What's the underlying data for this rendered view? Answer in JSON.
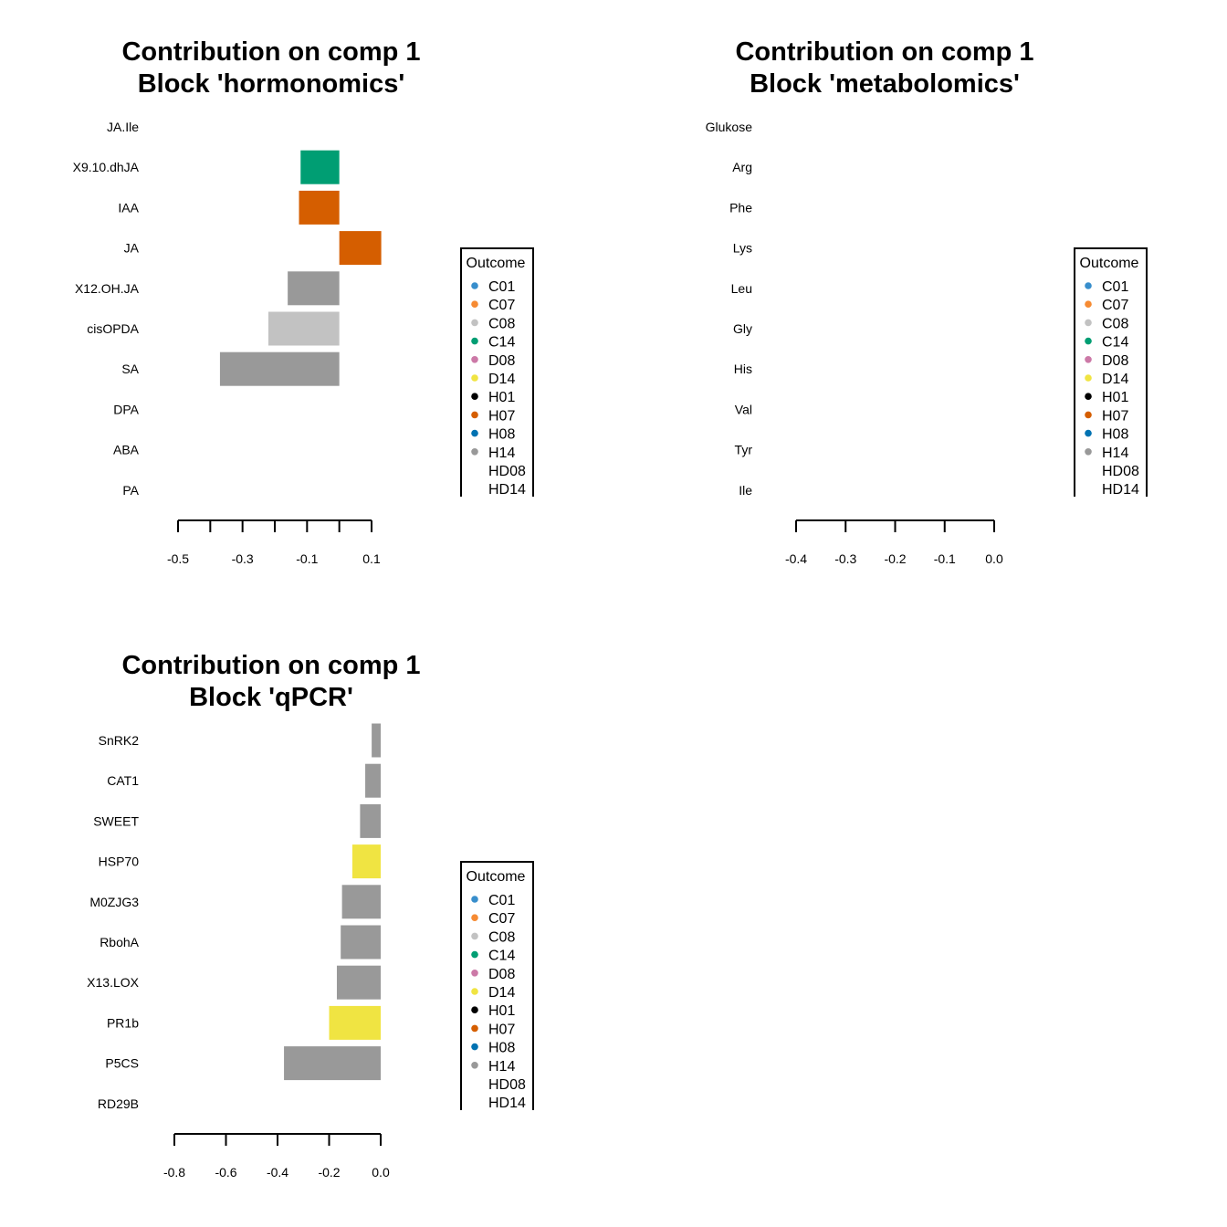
{
  "chart_data": [
    {
      "type": "bar",
      "orientation": "horizontal",
      "title_line1": "Contribution on comp 1",
      "title_line2": "Block 'hormonomics'",
      "variables": [
        "JA.Ile",
        "X9.10.dhJA",
        "IAA",
        "JA",
        "X12.OH.JA",
        "cisOPDA",
        "SA",
        "DPA",
        "ABA",
        "PA"
      ],
      "values": [
        null,
        -0.12,
        -0.125,
        0.13,
        -0.16,
        -0.22,
        -0.37,
        null,
        null,
        null
      ],
      "bar_colors": [
        null,
        "#009E73",
        "#D55E00",
        "#D55E00",
        "#999999",
        "#C2C2C2",
        "#999999",
        null,
        null,
        null
      ],
      "xlim": [
        -0.5,
        0.1
      ],
      "xticks": [
        -0.5,
        -0.4,
        -0.3,
        -0.2,
        -0.1,
        0.0,
        0.1
      ],
      "xtick_labels": [
        "-0.5",
        "",
        "-0.3",
        "",
        "-0.1",
        "",
        "0.1"
      ]
    },
    {
      "type": "bar",
      "orientation": "horizontal",
      "title_line1": "Contribution on comp 1",
      "title_line2": "Block 'metabolomics'",
      "variables": [
        "Glukose",
        "Arg",
        "Phe",
        "Lys",
        "Leu",
        "Gly",
        "His",
        "Val",
        "Tyr",
        "Ile"
      ],
      "values": [
        null,
        null,
        null,
        null,
        null,
        null,
        null,
        null,
        null,
        null
      ],
      "bar_colors": [
        null,
        null,
        null,
        null,
        null,
        null,
        null,
        null,
        null,
        null
      ],
      "xlim": [
        -0.4,
        0.0
      ],
      "xticks": [
        -0.4,
        -0.3,
        -0.2,
        -0.1,
        0.0
      ],
      "xtick_labels": [
        "-0.4",
        "-0.3",
        "-0.2",
        "-0.1",
        "0.0"
      ]
    },
    {
      "type": "bar",
      "orientation": "horizontal",
      "title_line1": "Contribution on comp 1",
      "title_line2": "Block 'qPCR'",
      "variables": [
        "SnRK2",
        "CAT1",
        "SWEET",
        "HSP70",
        "M0ZJG3",
        "RbohA",
        "X13.LOX",
        "PR1b",
        "P5CS",
        "RD29B"
      ],
      "values": [
        -0.035,
        -0.06,
        -0.08,
        -0.11,
        -0.15,
        -0.155,
        -0.17,
        -0.2,
        -0.375,
        null
      ],
      "bar_colors": [
        "#999999",
        "#999999",
        "#999999",
        "#F0E442",
        "#999999",
        "#999999",
        "#999999",
        "#F0E442",
        "#999999",
        null
      ],
      "xlim": [
        -0.8,
        0.0
      ],
      "xticks": [
        -0.8,
        -0.6,
        -0.4,
        -0.2,
        0.0
      ],
      "xtick_labels": [
        "-0.8",
        "-0.6",
        "-0.4",
        "-0.2",
        "0.0"
      ]
    }
  ],
  "legend": {
    "title": "Outcome",
    "items": [
      {
        "label": "C01",
        "color": "#388ECC"
      },
      {
        "label": "C07",
        "color": "#F68B33"
      },
      {
        "label": "C08",
        "color": "#C2C2C2"
      },
      {
        "label": "C14",
        "color": "#009E73"
      },
      {
        "label": "D08",
        "color": "#CC79A7"
      },
      {
        "label": "D14",
        "color": "#F0E442"
      },
      {
        "label": "H01",
        "color": "#000000"
      },
      {
        "label": "H07",
        "color": "#D55E00"
      },
      {
        "label": "H08",
        "color": "#0072B2"
      },
      {
        "label": "H14",
        "color": "#999999"
      },
      {
        "label": "HD08",
        "color": null
      },
      {
        "label": "HD14",
        "color": null
      }
    ]
  }
}
